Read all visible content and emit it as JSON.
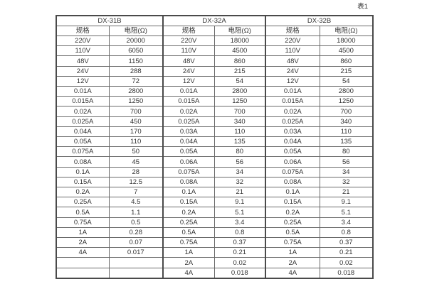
{
  "caption": "表1",
  "table": {
    "groups": [
      {
        "name": "DX-31B",
        "spec_header": "规格",
        "res_header": "电阻(Ω)",
        "rows": [
          [
            "220V",
            "20000"
          ],
          [
            "110V",
            "6050"
          ],
          [
            "48V",
            "1150"
          ],
          [
            "24V",
            "288"
          ],
          [
            "12V",
            "72"
          ],
          [
            "0.01A",
            "2800"
          ],
          [
            "0.015A",
            "1250"
          ],
          [
            "0.02A",
            "700"
          ],
          [
            "0.025A",
            "450"
          ],
          [
            "0.04A",
            "170"
          ],
          [
            "0.05A",
            "110"
          ],
          [
            "0.075A",
            "50"
          ],
          [
            "0.08A",
            "45"
          ],
          [
            "0.1A",
            "28"
          ],
          [
            "0.15A",
            "12.5"
          ],
          [
            "0.2A",
            "7"
          ],
          [
            "0.25A",
            "4.5"
          ],
          [
            "0.5A",
            "1.1"
          ],
          [
            "0.75A",
            "0.5"
          ],
          [
            "1A",
            "0.28"
          ],
          [
            "2A",
            "0.07"
          ],
          [
            "4A",
            "0.017"
          ],
          [
            "",
            ""
          ],
          [
            "",
            ""
          ]
        ]
      },
      {
        "name": "DX-32A",
        "spec_header": "规格",
        "res_header": "电阻(Ω)",
        "rows": [
          [
            "220V",
            "18000"
          ],
          [
            "110V",
            "4500"
          ],
          [
            "48V",
            "860"
          ],
          [
            "24V",
            "215"
          ],
          [
            "12V",
            "54"
          ],
          [
            "0.01A",
            "2800"
          ],
          [
            "0.015A",
            "1250"
          ],
          [
            "0.02A",
            "700"
          ],
          [
            "0.025A",
            "340"
          ],
          [
            "0.03A",
            "110"
          ],
          [
            "0.04A",
            "135"
          ],
          [
            "0.05A",
            "80"
          ],
          [
            "0.06A",
            "56"
          ],
          [
            "0.075A",
            "34"
          ],
          [
            "0.08A",
            "32"
          ],
          [
            "0.1A",
            "21"
          ],
          [
            "0.15A",
            "9.1"
          ],
          [
            "0.2A",
            "5.1"
          ],
          [
            "0.25A",
            "3.4"
          ],
          [
            "0.5A",
            "0.8"
          ],
          [
            "0.75A",
            "0.37"
          ],
          [
            "1A",
            "0.21"
          ],
          [
            "2A",
            "0.02"
          ],
          [
            "4A",
            "0.018"
          ]
        ]
      },
      {
        "name": "DX-32B",
        "spec_header": "规格",
        "res_header": "电阻(Ω)",
        "rows": [
          [
            "220V",
            "18000"
          ],
          [
            "110V",
            "4500"
          ],
          [
            "48V",
            "860"
          ],
          [
            "24V",
            "215"
          ],
          [
            "12V",
            "54"
          ],
          [
            "0.01A",
            "2800"
          ],
          [
            "0.015A",
            "1250"
          ],
          [
            "0.02A",
            "700"
          ],
          [
            "0.025A",
            "340"
          ],
          [
            "0.03A",
            "110"
          ],
          [
            "0.04A",
            "135"
          ],
          [
            "0.05A",
            "80"
          ],
          [
            "0.06A",
            "56"
          ],
          [
            "0.075A",
            "34"
          ],
          [
            "0.08A",
            "32"
          ],
          [
            "0.1A",
            "21"
          ],
          [
            "0.15A",
            "9.1"
          ],
          [
            "0.2A",
            "5.1"
          ],
          [
            "0.25A",
            "3.4"
          ],
          [
            "0.5A",
            "0.8"
          ],
          [
            "0.75A",
            "0.37"
          ],
          [
            "1A",
            "0.21"
          ],
          [
            "2A",
            "0.02"
          ],
          [
            "4A",
            "0.018"
          ]
        ]
      }
    ]
  },
  "colors": {
    "text": "#333333",
    "inner_border": "#6a6a6a",
    "outer_border": "#4a4a4a",
    "background": "#ffffff"
  }
}
